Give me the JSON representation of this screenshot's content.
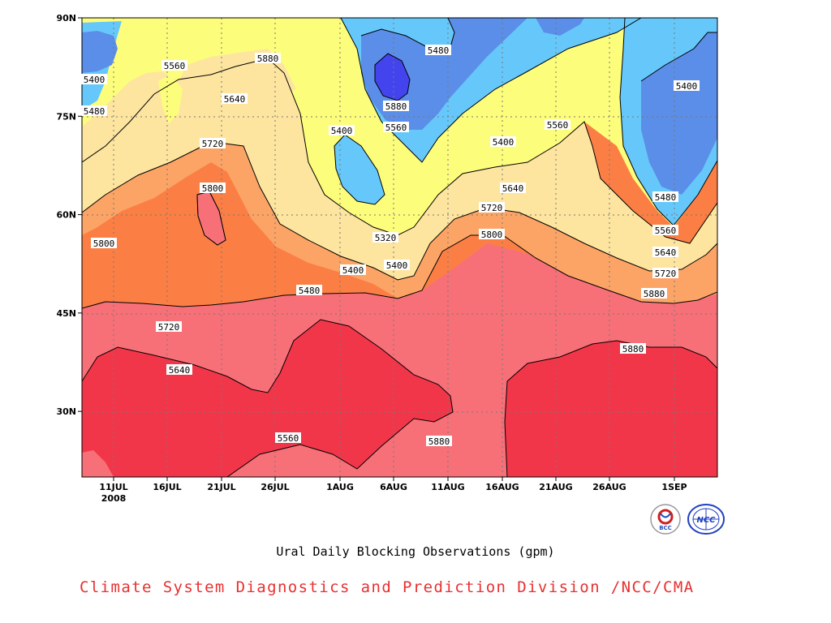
{
  "chart_data": {
    "type": "heatmap",
    "title": "Ural Daily Blocking Observations (gpm)",
    "xlabel": "",
    "ylabel": "",
    "x_ticks": [
      "11JUL",
      "16JUL",
      "21JUL",
      "26JUL",
      "1AUG",
      "6AUG",
      "11AUG",
      "16AUG",
      "21AUG",
      "26AUG",
      "1SEP"
    ],
    "x_year_label": "2008",
    "y_ticks": [
      "30N",
      "45N",
      "60N",
      "75N",
      "90N"
    ],
    "ylim": [
      20,
      90
    ],
    "grid": true,
    "contour_levels": [
      5320,
      5400,
      5480,
      5560,
      5640,
      5720,
      5800,
      5880
    ],
    "contour_labels": [
      "5400",
      "5480",
      "5560",
      "5640",
      "5720",
      "5800",
      "5880",
      "5880",
      "5560",
      "5480",
      "5400",
      "5320",
      "5400",
      "5400",
      "5480",
      "5560",
      "5640",
      "5720",
      "5800",
      "5880",
      "5560",
      "5640",
      "5720",
      "5800",
      "5880",
      "5400",
      "5400",
      "5480",
      "5560",
      "5640",
      "5720",
      "5880"
    ],
    "colors": {
      "lt5320": "#4444ee",
      "5320_5400": "#5b8ee8",
      "5400_5480": "#66c8fa",
      "5480_5560": "#fdfd7c",
      "5560_5640": "#fde5a0",
      "5640_5720": "#fca466",
      "5720_5800": "#fb7f45",
      "5800_5880": "#f77078",
      "gt5880": "#f2364a"
    }
  },
  "credit": {
    "text": "Climate System Diagnostics and Prediction Division /NCC/CMA",
    "color": "#e83030"
  },
  "logos": {
    "left": "BCC",
    "right": "NCC"
  }
}
